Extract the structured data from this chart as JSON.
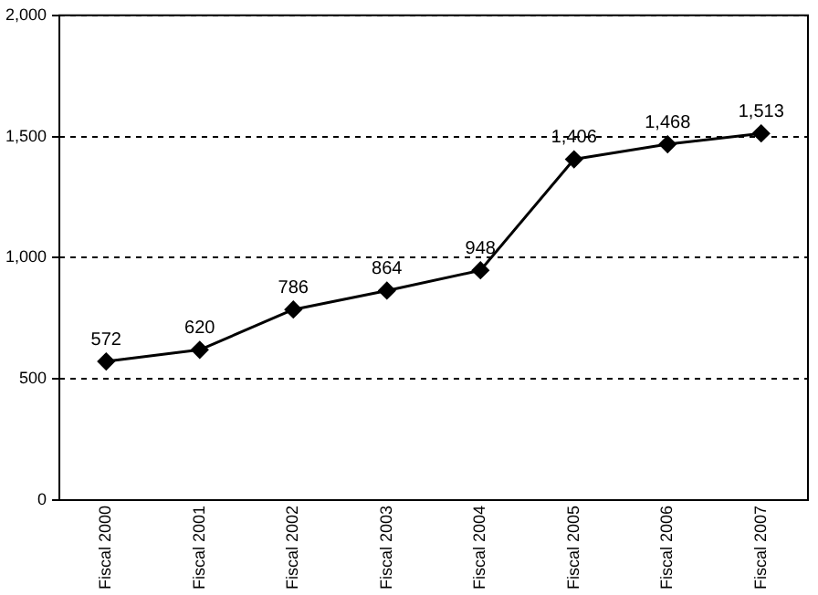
{
  "chart_data": {
    "type": "line",
    "categories": [
      "Fiscal 2000",
      "Fiscal 2001",
      "Fiscal 2002",
      "Fiscal 2003",
      "Fiscal 2004",
      "Fiscal 2005",
      "Fiscal 2006",
      "Fiscal 2007"
    ],
    "values": [
      572,
      620,
      786,
      864,
      948,
      1406,
      1468,
      1513
    ],
    "color": "#000000",
    "value_labels": [
      "572",
      "620",
      "786",
      "864",
      "948",
      "1,406",
      "1,468",
      "1,513"
    ],
    "ylim": [
      0,
      2000
    ],
    "yticks": [
      0,
      500,
      {
        "value": 1000,
        "label": "1,000"
      },
      {
        "value": 1500,
        "label": "1,500"
      },
      {
        "value": 2000,
        "label": "2,000"
      }
    ],
    "grid": "y",
    "marker": "diamond",
    "line_style": "solid"
  }
}
